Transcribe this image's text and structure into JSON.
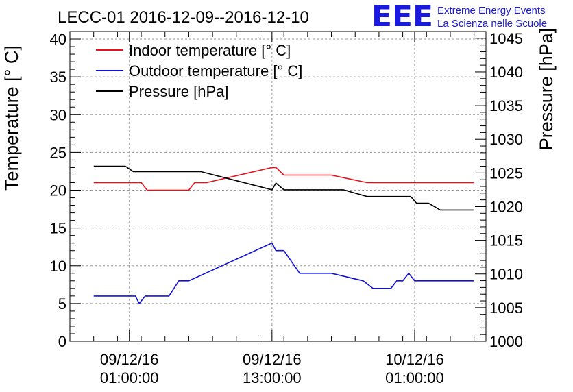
{
  "chart_data": {
    "type": "line",
    "title": "LECC-01 2016-12-09--2016-12-10",
    "ylabel": "Temperature [° C]",
    "y2label": "Pressure [hPa]",
    "ylim": [
      0,
      41
    ],
    "y2lim": [
      1000,
      1046
    ],
    "xlim": [
      "2016-12-08 20:00:00",
      "2016-12-10 07:00:00"
    ],
    "grid": true,
    "legend_position": "top-left",
    "x_ticks": [
      {
        "time": "2016-12-09 01:00:00",
        "date": "09/12/16",
        "clock": "01:00:00"
      },
      {
        "time": "2016-12-09 13:00:00",
        "date": "09/12/16",
        "clock": "13:00:00"
      },
      {
        "time": "2016-12-10 01:00:00",
        "date": "10/12/16",
        "clock": "01:00:00"
      }
    ],
    "y_ticks": [
      "0",
      "5",
      "10",
      "15",
      "20",
      "25",
      "30",
      "35",
      "40"
    ],
    "y2_ticks": [
      "1000",
      "1005",
      "1010",
      "1015",
      "1020",
      "1025",
      "1030",
      "1035",
      "1040",
      "1045"
    ],
    "series": [
      {
        "name": "Indoor temperature [° C]",
        "color": "#e8101a",
        "axis": "left",
        "points": [
          [
            "2016-12-08 22:00",
            21
          ],
          [
            "2016-12-09 02:00",
            21
          ],
          [
            "2016-12-09 02:30",
            20
          ],
          [
            "2016-12-09 06:00",
            20
          ],
          [
            "2016-12-09 06:30",
            21
          ],
          [
            "2016-12-09 07:30",
            21
          ],
          [
            "2016-12-09 13:00",
            23
          ],
          [
            "2016-12-09 13:20",
            23
          ],
          [
            "2016-12-09 14:00",
            22
          ],
          [
            "2016-12-09 18:00",
            22
          ],
          [
            "2016-12-09 21:00",
            21
          ],
          [
            "2016-12-10 06:00",
            21
          ]
        ]
      },
      {
        "name": "Outdoor temperature [° C]",
        "color": "#1010d8",
        "axis": "left",
        "points": [
          [
            "2016-12-08 22:00",
            6
          ],
          [
            "2016-12-09 00:40",
            6
          ],
          [
            "2016-12-09 01:30",
            6
          ],
          [
            "2016-12-09 01:50",
            5
          ],
          [
            "2016-12-09 02:20",
            6
          ],
          [
            "2016-12-09 04:20",
            6
          ],
          [
            "2016-12-09 05:10",
            8
          ],
          [
            "2016-12-09 06:00",
            8
          ],
          [
            "2016-12-09 13:00",
            13
          ],
          [
            "2016-12-09 13:20",
            12
          ],
          [
            "2016-12-09 14:00",
            12
          ],
          [
            "2016-12-09 15:20",
            9
          ],
          [
            "2016-12-09 18:00",
            9
          ],
          [
            "2016-12-09 20:40",
            8
          ],
          [
            "2016-12-09 21:30",
            7
          ],
          [
            "2016-12-09 23:00",
            7
          ],
          [
            "2016-12-09 23:30",
            8
          ],
          [
            "2016-12-10 00:00",
            8
          ],
          [
            "2016-12-10 00:30",
            9
          ],
          [
            "2016-12-10 01:00",
            8
          ],
          [
            "2016-12-10 06:00",
            8
          ]
        ]
      },
      {
        "name": "Pressure [hPa]",
        "color": "#000000",
        "axis": "right",
        "points": [
          [
            "2016-12-08 22:00",
            1026
          ],
          [
            "2016-12-09 00:40",
            1026
          ],
          [
            "2016-12-09 01:20",
            1025.2
          ],
          [
            "2016-12-09 07:00",
            1025.2
          ],
          [
            "2016-12-09 13:00",
            1022.5
          ],
          [
            "2016-12-09 13:20",
            1023.5
          ],
          [
            "2016-12-09 14:00",
            1022.5
          ],
          [
            "2016-12-09 19:00",
            1022.5
          ],
          [
            "2016-12-09 21:00",
            1021.5
          ],
          [
            "2016-12-10 00:40",
            1021.5
          ],
          [
            "2016-12-10 01:10",
            1020.5
          ],
          [
            "2016-12-10 02:10",
            1020.5
          ],
          [
            "2016-12-10 03:10",
            1019.5
          ],
          [
            "2016-12-10 06:00",
            1019.5
          ]
        ]
      }
    ]
  },
  "logo": {
    "mark": "EEE",
    "line1": "Extreme Energy Events",
    "line2": "La Scienza nelle Scuole",
    "color": "#1a1adf"
  }
}
